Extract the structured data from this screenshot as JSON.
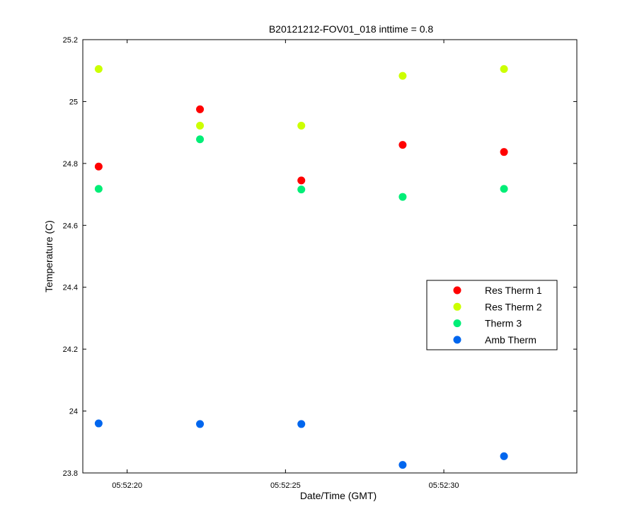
{
  "chart_data": {
    "type": "scatter",
    "title": "B20121212-FOV01_018 inttime = 0.8",
    "xlabel": "Date/Time (GMT)",
    "ylabel": "Temperature (C)",
    "x_ticks": [
      "05:52:20",
      "05:52:25",
      "05:52:30"
    ],
    "x_tick_seconds": [
      20,
      25,
      30
    ],
    "xlim_seconds": [
      18.6,
      34.2
    ],
    "ylim": [
      23.8,
      25.2
    ],
    "y_ticks": [
      23.8,
      24,
      24.2,
      24.4,
      24.6,
      24.8,
      25,
      25.2
    ],
    "y_tick_labels": [
      "23.8",
      "24",
      "24.2",
      "24.4",
      "24.6",
      "24.8",
      "25",
      "25.2"
    ],
    "x_seconds": [
      19.1,
      22.3,
      25.5,
      28.7,
      31.9
    ],
    "legend_position": "right, lower-middle",
    "series": [
      {
        "name": "Res Therm 1",
        "color": "#ff0000",
        "values": [
          24.79,
          24.975,
          24.745,
          24.86,
          24.837
        ]
      },
      {
        "name": "Res Therm 2",
        "color": "#ccff00",
        "values": [
          25.105,
          24.922,
          24.922,
          25.083,
          25.105
        ]
      },
      {
        "name": "Therm 3",
        "color": "#00ee77",
        "values": [
          24.718,
          24.878,
          24.716,
          24.692,
          24.718
        ]
      },
      {
        "name": "Amb Therm",
        "color": "#0066ee",
        "values": [
          23.96,
          23.958,
          23.958,
          23.826,
          23.854
        ]
      }
    ]
  }
}
